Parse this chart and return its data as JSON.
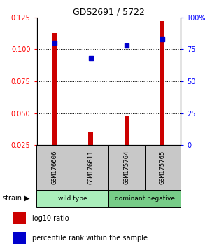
{
  "title": "GDS2691 / 5722",
  "samples": [
    "GSM176606",
    "GSM176611",
    "GSM175764",
    "GSM175765"
  ],
  "log10_ratio": [
    0.113,
    0.035,
    0.048,
    0.122
  ],
  "percentile_rank": [
    80,
    68,
    78,
    83
  ],
  "groups": [
    {
      "label": "wild type",
      "samples": [
        0,
        1
      ],
      "color": "#aaeebb"
    },
    {
      "label": "dominant negative",
      "samples": [
        2,
        3
      ],
      "color": "#77cc88"
    }
  ],
  "left_ylim": [
    0.025,
    0.125
  ],
  "left_yticks": [
    0.025,
    0.05,
    0.075,
    0.1,
    0.125
  ],
  "right_ylim": [
    0,
    100
  ],
  "right_yticks": [
    0,
    25,
    50,
    75,
    100
  ],
  "right_yticklabels": [
    "0",
    "25",
    "50",
    "75",
    "100%"
  ],
  "bar_color": "#cc0000",
  "dot_color": "#0000cc",
  "bar_width": 0.12,
  "sample_bg_color": "#c8c8c8",
  "strain_label": "strain",
  "legend_bar_label": "log10 ratio",
  "legend_dot_label": "percentile rank within the sample"
}
